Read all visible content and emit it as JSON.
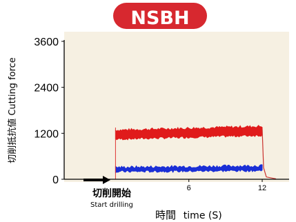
{
  "badge": {
    "label": "NSBH",
    "color": "#d7282f"
  },
  "chart_data": {
    "type": "line",
    "ylabel": "切削抵抗値 Cutting force",
    "xlabel_jp": "時間",
    "xlabel_en": "time (S)",
    "ylim": [
      0,
      3600
    ],
    "xlim": [
      -4.2,
      14.2
    ],
    "yticks": [
      0,
      1200,
      2400,
      3600
    ],
    "xticks": [
      6,
      12
    ],
    "annotation": {
      "x": 0,
      "label_jp": "切削開始",
      "label_en": "Start drilling"
    },
    "series": [
      {
        "color": "#e01b1b",
        "x": [
          0,
          12
        ],
        "band_low": [
          1050,
          1150
        ],
        "band_high": [
          1280,
          1380
        ]
      },
      {
        "color": "#1a2fd6",
        "x": [
          0,
          12
        ],
        "band_low": [
          200,
          230
        ],
        "band_high": [
          310,
          350
        ]
      }
    ]
  },
  "colors": {
    "plot_bg": "#f6f0e2",
    "axis": "#000000"
  }
}
